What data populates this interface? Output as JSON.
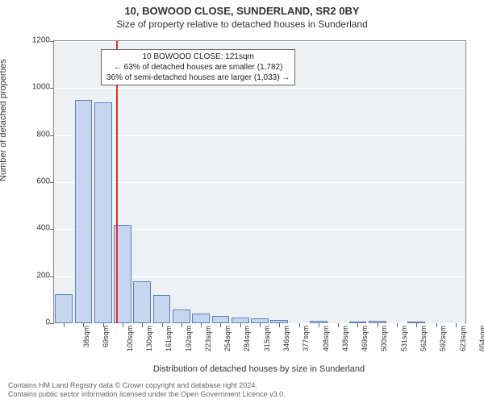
{
  "chart": {
    "type": "histogram",
    "title": "10, BOWOOD CLOSE, SUNDERLAND, SR2 0BY",
    "subtitle": "Size of property relative to detached houses in Sunderland",
    "xlabel": "Distribution of detached houses by size in Sunderland",
    "ylabel": "Number of detached properties",
    "background_color": "#eef1f4",
    "grid_color": "#ffffff",
    "bar_fill": "#c6d6ef",
    "bar_border": "#5a7fb5",
    "marker_color": "#d93030",
    "ylim": [
      0,
      1200
    ],
    "yticks": [
      0,
      200,
      400,
      600,
      800,
      1000,
      1200
    ],
    "x_categories": [
      "38sqm",
      "69sqm",
      "100sqm",
      "130sqm",
      "161sqm",
      "192sqm",
      "223sqm",
      "254sqm",
      "284sqm",
      "315sqm",
      "346sqm",
      "377sqm",
      "408sqm",
      "438sqm",
      "469sqm",
      "500sqm",
      "531sqm",
      "562sqm",
      "592sqm",
      "623sqm",
      "654sqm"
    ],
    "values": [
      125,
      950,
      940,
      420,
      180,
      120,
      60,
      40,
      30,
      25,
      20,
      15,
      0,
      10,
      0,
      2,
      10,
      0,
      3,
      0,
      0
    ],
    "marker_x_sqm": 121,
    "x_start": 38,
    "x_step": 31,
    "annotation": {
      "line1": "10 BOWOOD CLOSE: 121sqm",
      "line2": "← 63% of detached houses are smaller (1,782)",
      "line3": "36% of semi-detached houses are larger (1,033) →"
    },
    "footer": {
      "line1": "Contains HM Land Registry data © Crown copyright and database right 2024.",
      "line2": "Contains public sector information licensed under the Open Government Licence v3.0."
    },
    "title_fontsize": 13,
    "label_fontsize": 11,
    "tick_fontsize": 10
  }
}
